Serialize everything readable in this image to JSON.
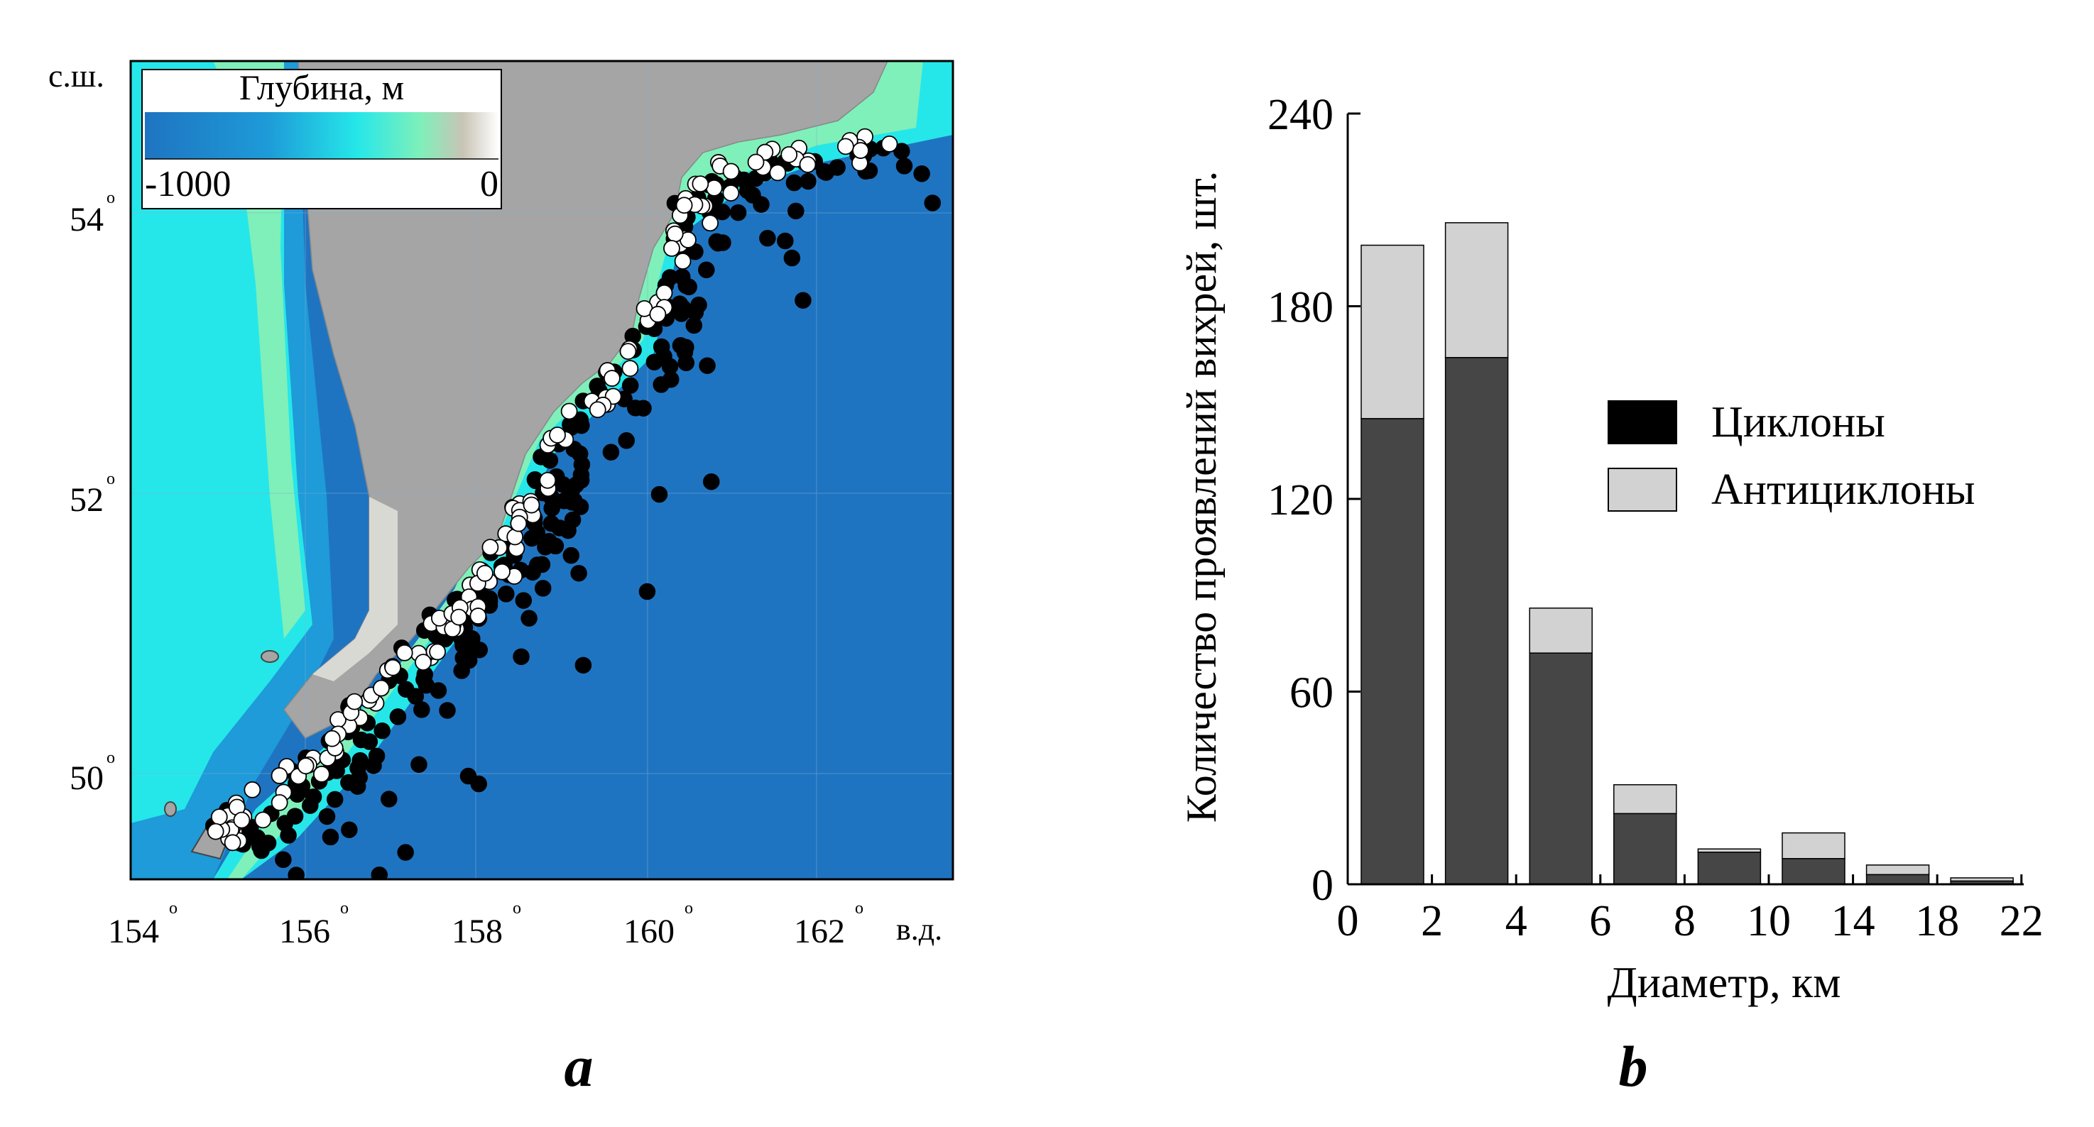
{
  "panel_a": {
    "label": "a",
    "lat_axis_label": "с.ш.",
    "lon_axis_label": "в.д.",
    "lat_ticks": [
      "54",
      "52",
      "50"
    ],
    "lon_ticks": [
      "154",
      "156",
      "158",
      "160",
      "162"
    ],
    "degree_symbol": "o",
    "legend": {
      "title": "Глубина, м",
      "min_label": "-1000",
      "max_label": "0"
    },
    "colors": {
      "deep_ocean": "#1f74c1",
      "ocean_mid": "#1e9bd8",
      "shelf_cyan": "#25e7e9",
      "shelf_green": "#7ff0b9",
      "land": "#a5a5a5",
      "coast_light": "#e2e2dc",
      "cyclone_marker": "#000000",
      "anticyclone_marker": "#ffffff"
    }
  },
  "chart_data": {
    "type": "bar",
    "label": "b",
    "xlabel": "Диаметр, км",
    "ylabel": "Количество проявлений вихрей, шт.",
    "x_tick_labels": [
      "0",
      "2",
      "4",
      "6",
      "8",
      "10",
      "14",
      "18",
      "22"
    ],
    "categories": [
      "0–2",
      "2–4",
      "4–6",
      "6–8",
      "8–10",
      "10–14",
      "14–18",
      "18–22"
    ],
    "stacked": true,
    "ylim": [
      0,
      240
    ],
    "y_ticks": [
      "0",
      "60",
      "120",
      "180",
      "240"
    ],
    "series": [
      {
        "name": "Циклоны",
        "values": [
          145,
          164,
          72,
          22,
          10,
          8,
          3,
          1
        ]
      },
      {
        "name": "Антициклоны",
        "values": [
          54,
          42,
          14,
          9,
          1,
          8,
          3,
          1
        ]
      }
    ],
    "legend_position": "right",
    "grid": false,
    "colors": {
      "Циклоны": "#464646",
      "Антициклоны": "#d2d2d2"
    }
  }
}
